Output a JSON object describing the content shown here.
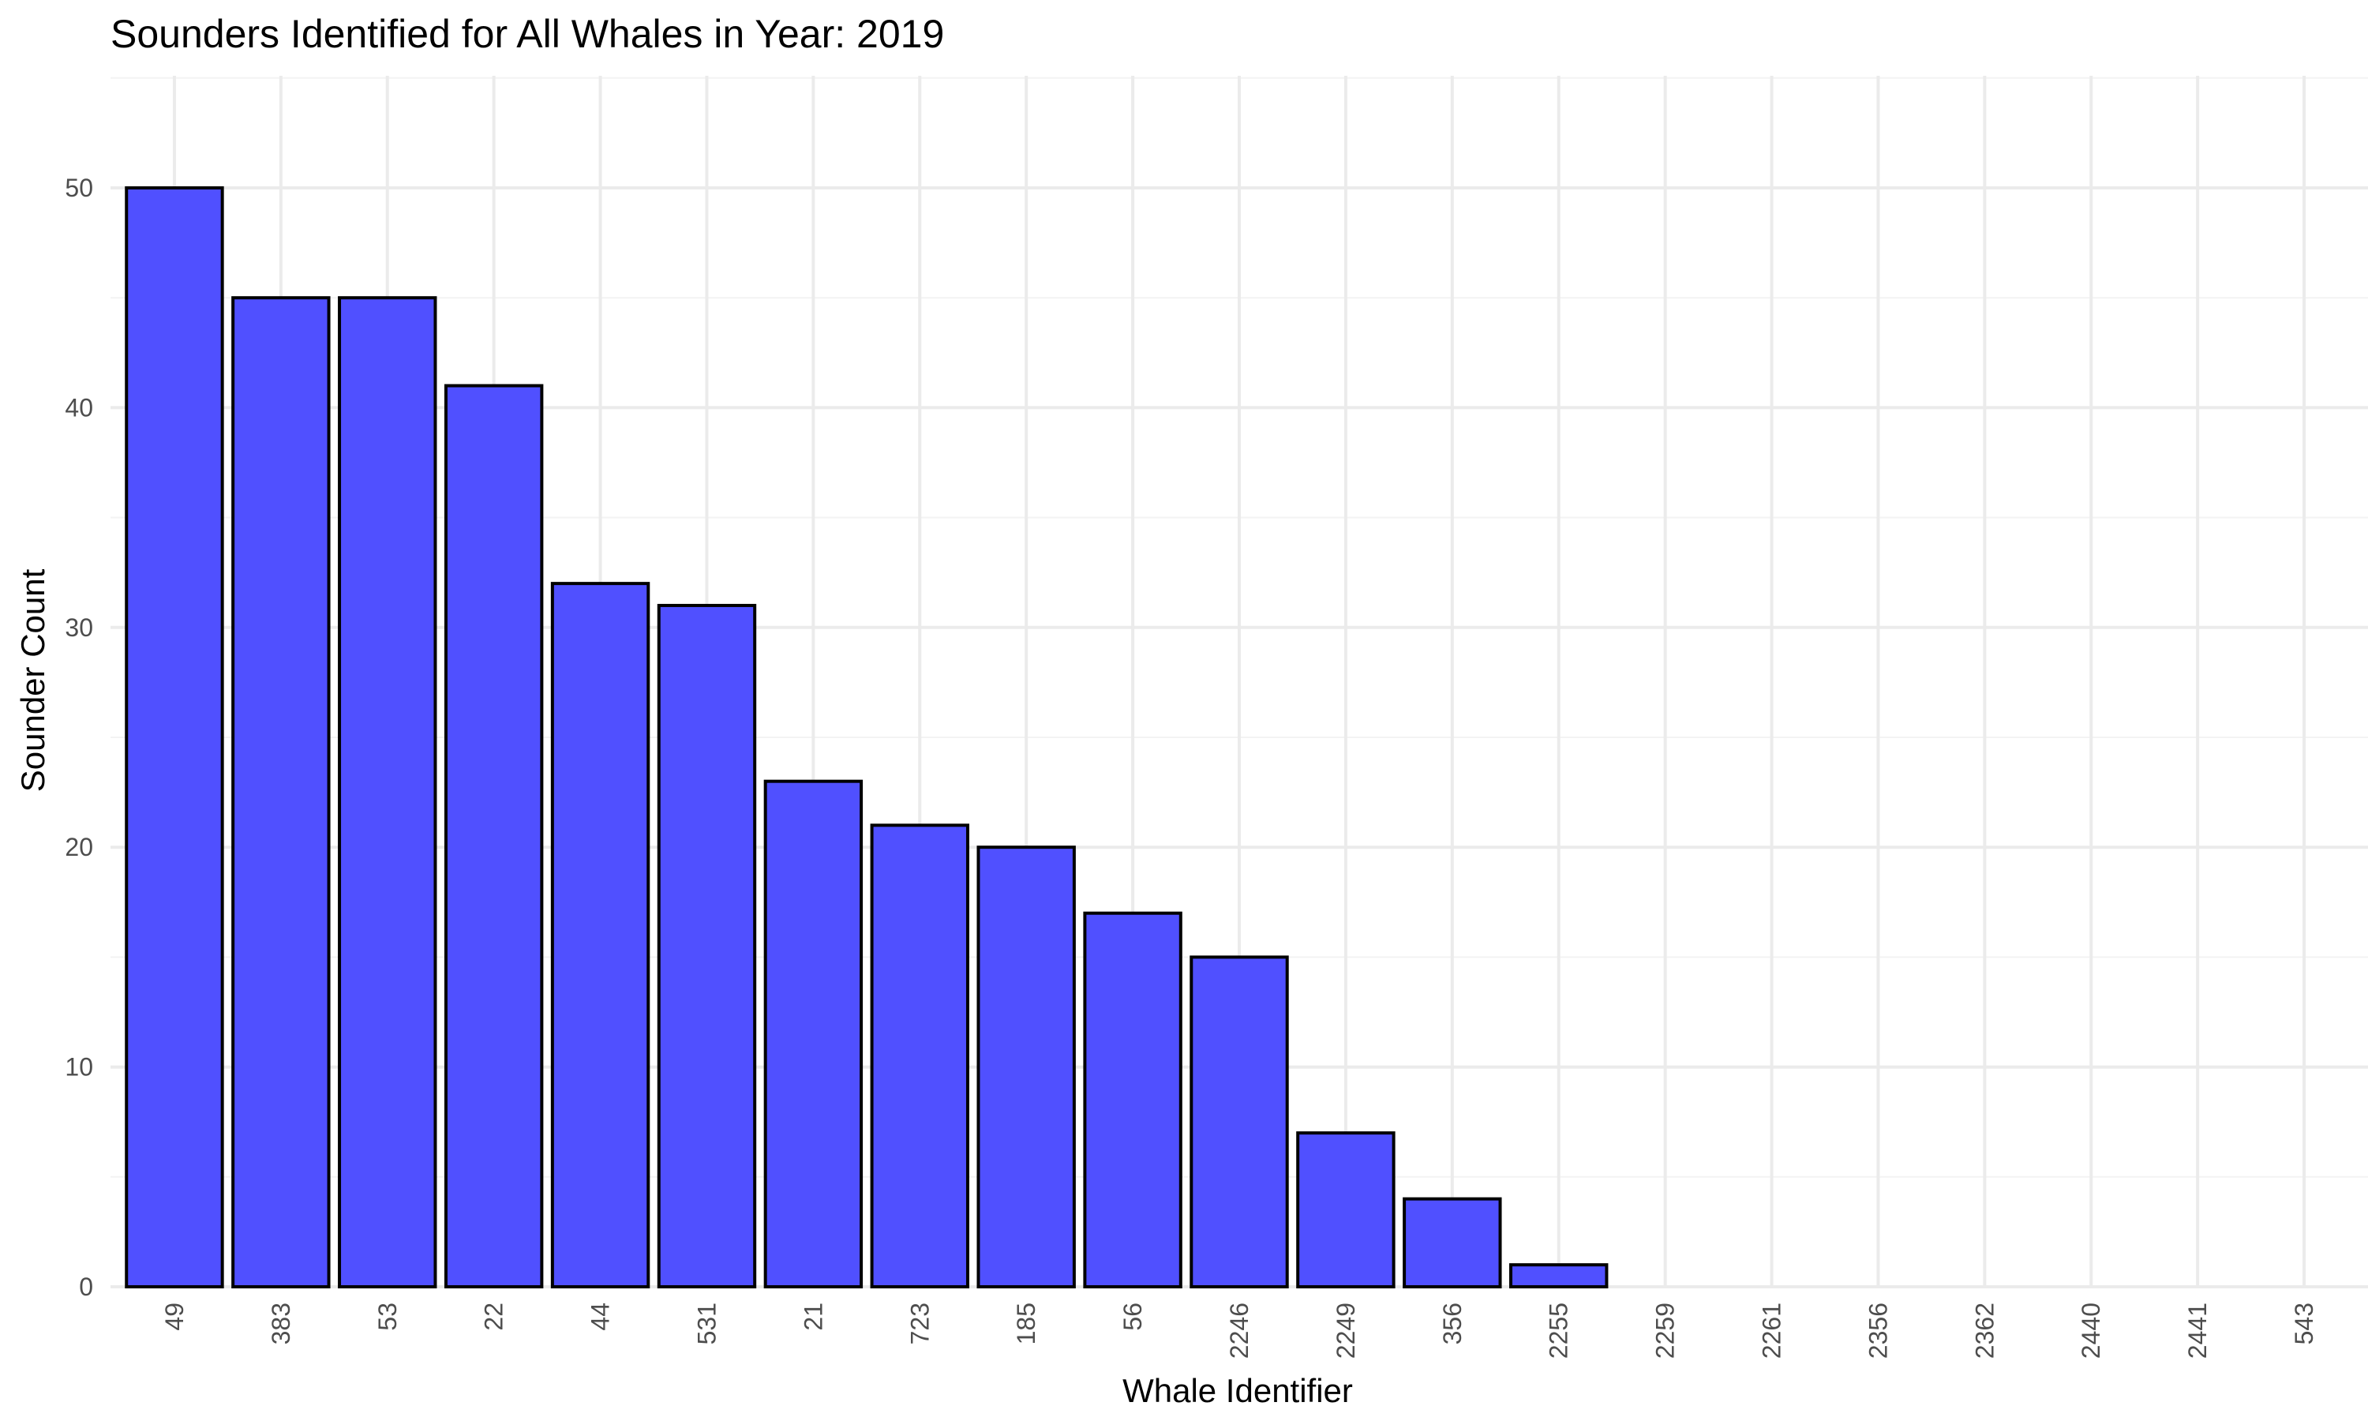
{
  "chart_data": {
    "type": "bar",
    "title": "Sounders Identified for All Whales in Year: 2019",
    "xlabel": "Whale Identifier",
    "ylabel": "Sounder Count",
    "categories": [
      "49",
      "383",
      "53",
      "22",
      "44",
      "531",
      "21",
      "723",
      "185",
      "56",
      "2246",
      "2249",
      "356",
      "2255",
      "2259",
      "2261",
      "2356",
      "2362",
      "2440",
      "2441",
      "543"
    ],
    "values": [
      50,
      45,
      45,
      41,
      32,
      31,
      23,
      21,
      20,
      17,
      15,
      7,
      4,
      1,
      0,
      0,
      0,
      0,
      0,
      0,
      0
    ],
    "ylim": [
      0,
      55
    ],
    "yticks": [
      0,
      10,
      20,
      30,
      40,
      50
    ],
    "grid": true,
    "colors": {
      "bar_fill": "#4c4cff",
      "bar_outline": "#000000",
      "grid": "#ebebeb"
    }
  }
}
